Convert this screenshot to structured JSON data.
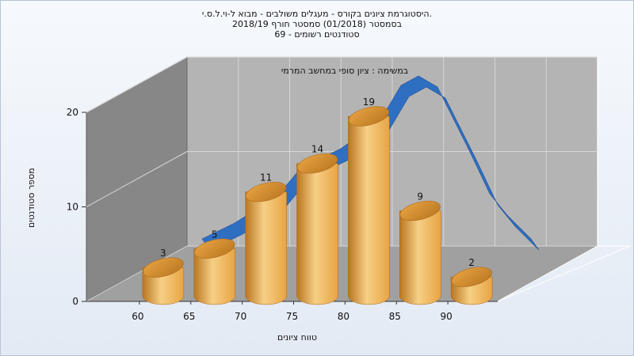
{
  "chart_data": {
    "type": "bar",
    "title_lines": [
      "היסטוגרמת ציונים בקורס - מעגלים משולבים - מבוא ל-וי.ל.ס.י.",
      "בסמסטר  (01/2018)  סמסטר חורף 2018/19",
      "סטודנטים רשומים - 69"
    ],
    "subtitle": "במשימה : ציון סופי במחשב המרמי",
    "xlabel": "טווח ציונים",
    "ylabel": "מספר סטודנטים",
    "categories": [
      "60",
      "65",
      "70",
      "75",
      "80",
      "85",
      "90"
    ],
    "x_ticks": [
      "60",
      "65",
      "70",
      "75",
      "80",
      "85",
      "90"
    ],
    "values": [
      3,
      5,
      11,
      14,
      19,
      9,
      2
    ],
    "y_ticks": [
      "0",
      "10",
      "20"
    ],
    "ylim": [
      0,
      20
    ],
    "bar_style": "3d-cylinder",
    "overlay": "3d-ribbon-curve",
    "grid": true,
    "colors": {
      "bar_light": "#f6cf86",
      "bar_mid": "#e8a443",
      "bar_dark": "#b9761f",
      "ribbon": "#2f6fc2",
      "back_wall": "#b4b4b4",
      "side_wall": "#878787",
      "floor": "#a0a0a0"
    }
  }
}
